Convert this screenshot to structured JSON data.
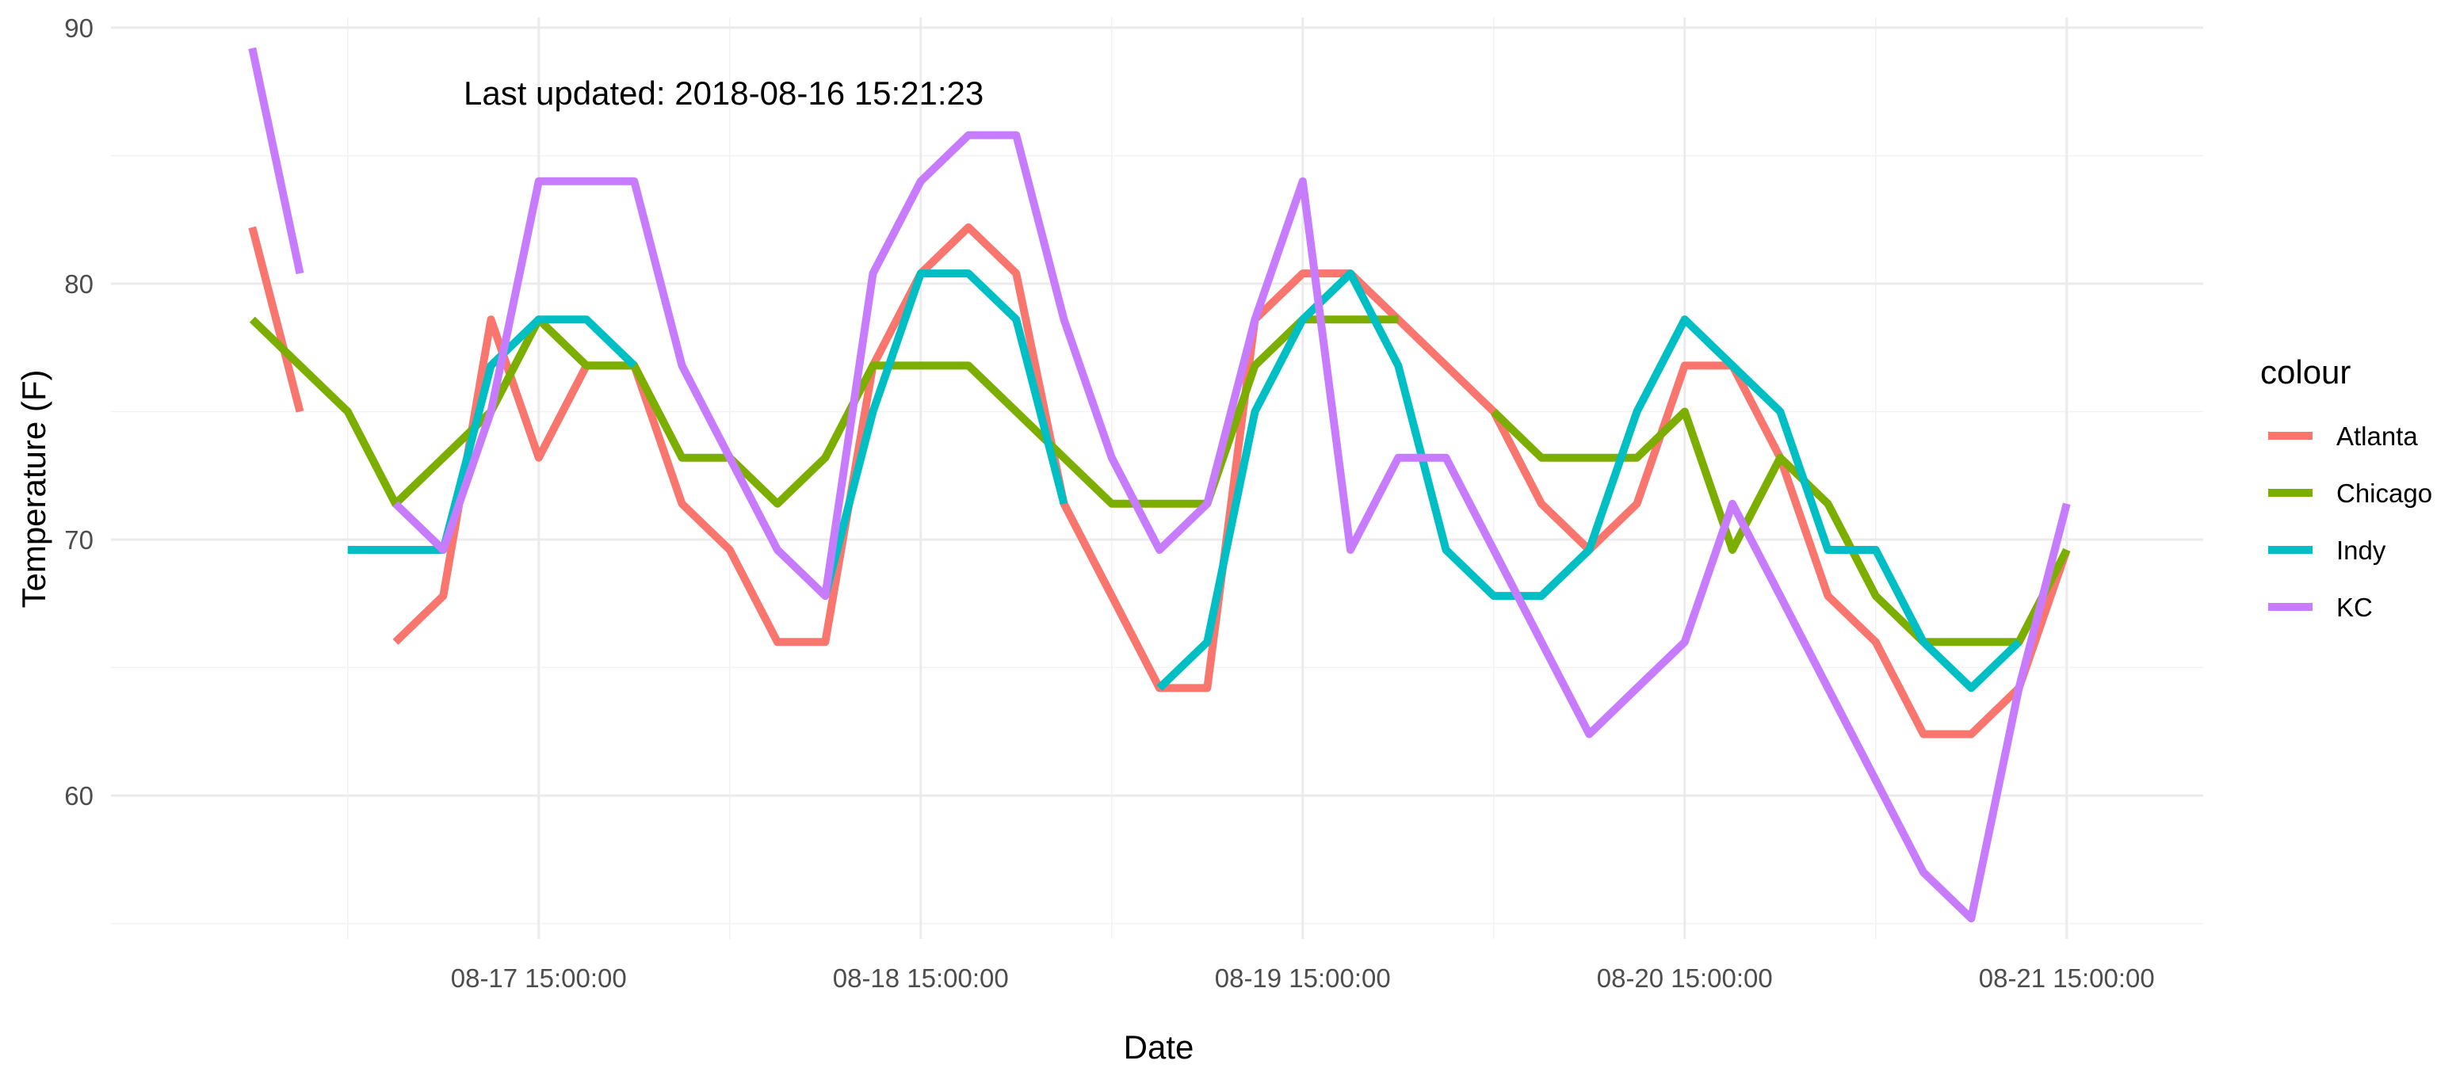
{
  "chart_data": {
    "type": "line",
    "xlabel": "Date",
    "ylabel": "Temperature (F)",
    "annotation": "Last updated: 2018-08-16 15:21:23",
    "legend": {
      "title": "colour",
      "placement": "right"
    },
    "grid": true,
    "ylim": [
      54.4,
      90.4
    ],
    "y_ticks": [
      60,
      70,
      80,
      90
    ],
    "x_unit": "date-time (Aug 2018, 3-hour steps)",
    "x_range": [
      "2018-08-16 18:00",
      "2018-08-21 18:00"
    ],
    "x_ticks": [
      {
        "x": "2018-08-17 15:00",
        "label": "08-17 15:00:00"
      },
      {
        "x": "2018-08-18 15:00",
        "label": "08-18 15:00:00"
      },
      {
        "x": "2018-08-19 15:00",
        "label": "08-19 15:00:00"
      },
      {
        "x": "2018-08-20 15:00",
        "label": "08-20 15:00:00"
      },
      {
        "x": "2018-08-21 15:00",
        "label": "08-21 15:00:00"
      }
    ],
    "x_minor": [
      "2018-08-17 03:00",
      "2018-08-18 03:00",
      "2018-08-19 03:00",
      "2018-08-20 03:00",
      "2018-08-21 03:00"
    ],
    "series": [
      {
        "name": "Atlanta",
        "color": "#F8766D",
        "segments": [
          [
            [
              "2018-08-16 21:00",
              82.2
            ],
            [
              "2018-08-17 00:00",
              75.0
            ]
          ],
          [
            [
              "2018-08-17 06:00",
              66.0
            ],
            [
              "2018-08-17 09:00",
              67.8
            ],
            [
              "2018-08-17 12:00",
              78.6
            ],
            [
              "2018-08-17 15:00",
              73.2
            ],
            [
              "2018-08-17 18:00",
              76.8
            ],
            [
              "2018-08-17 21:00",
              76.8
            ],
            [
              "2018-08-18 00:00",
              71.4
            ],
            [
              "2018-08-18 03:00",
              69.6
            ],
            [
              "2018-08-18 06:00",
              66.0
            ],
            [
              "2018-08-18 09:00",
              66.0
            ],
            [
              "2018-08-18 12:00",
              76.8
            ],
            [
              "2018-08-18 15:00",
              80.4
            ],
            [
              "2018-08-18 18:00",
              82.2
            ],
            [
              "2018-08-18 21:00",
              80.4
            ],
            [
              "2018-08-19 00:00",
              71.4
            ],
            [
              "2018-08-19 03:00",
              67.8
            ],
            [
              "2018-08-19 06:00",
              64.2
            ],
            [
              "2018-08-19 09:00",
              64.2
            ],
            [
              "2018-08-19 12:00",
              78.6
            ],
            [
              "2018-08-19 15:00",
              80.4
            ],
            [
              "2018-08-19 18:00",
              80.4
            ],
            [
              "2018-08-19 21:00",
              78.6
            ],
            [
              "2018-08-20 00:00",
              76.8
            ],
            [
              "2018-08-20 03:00",
              75.0
            ],
            [
              "2018-08-20 06:00",
              71.4
            ],
            [
              "2018-08-20 09:00",
              69.6
            ],
            [
              "2018-08-20 12:00",
              71.4
            ],
            [
              "2018-08-20 15:00",
              76.8
            ],
            [
              "2018-08-20 18:00",
              76.8
            ],
            [
              "2018-08-20 21:00",
              73.2
            ],
            [
              "2018-08-21 00:00",
              67.8
            ],
            [
              "2018-08-21 03:00",
              66.0
            ],
            [
              "2018-08-21 06:00",
              62.4
            ],
            [
              "2018-08-21 09:00",
              62.4
            ],
            [
              "2018-08-21 12:00",
              64.2
            ],
            [
              "2018-08-21 15:00",
              69.6
            ]
          ]
        ]
      },
      {
        "name": "Chicago",
        "color": "#7CAE00",
        "segments": [
          [
            [
              "2018-08-16 21:00",
              78.6
            ],
            [
              "2018-08-17 00:00",
              76.8
            ],
            [
              "2018-08-17 03:00",
              75.0
            ],
            [
              "2018-08-17 06:00",
              71.4
            ],
            [
              "2018-08-17 09:00",
              73.2
            ],
            [
              "2018-08-17 12:00",
              75.0
            ],
            [
              "2018-08-17 15:00",
              78.6
            ],
            [
              "2018-08-17 18:00",
              76.8
            ],
            [
              "2018-08-17 21:00",
              76.8
            ],
            [
              "2018-08-18 00:00",
              73.2
            ],
            [
              "2018-08-18 03:00",
              73.2
            ],
            [
              "2018-08-18 06:00",
              71.4
            ],
            [
              "2018-08-18 09:00",
              73.2
            ],
            [
              "2018-08-18 12:00",
              76.8
            ],
            [
              "2018-08-18 15:00",
              76.8
            ],
            [
              "2018-08-18 18:00",
              76.8
            ],
            [
              "2018-08-18 21:00",
              75.0
            ],
            [
              "2018-08-19 00:00",
              73.2
            ],
            [
              "2018-08-19 03:00",
              71.4
            ],
            [
              "2018-08-19 06:00",
              71.4
            ],
            [
              "2018-08-19 09:00",
              71.4
            ],
            [
              "2018-08-19 12:00",
              76.8
            ],
            [
              "2018-08-19 15:00",
              78.6
            ],
            [
              "2018-08-19 18:00",
              78.6
            ],
            [
              "2018-08-19 21:00",
              78.6
            ]
          ],
          [
            [
              "2018-08-20 03:00",
              75.0
            ],
            [
              "2018-08-20 06:00",
              73.2
            ],
            [
              "2018-08-20 09:00",
              73.2
            ],
            [
              "2018-08-20 12:00",
              73.2
            ],
            [
              "2018-08-20 15:00",
              75.0
            ],
            [
              "2018-08-20 18:00",
              69.6
            ],
            [
              "2018-08-20 21:00",
              73.2
            ],
            [
              "2018-08-21 00:00",
              71.4
            ],
            [
              "2018-08-21 03:00",
              67.8
            ],
            [
              "2018-08-21 06:00",
              66.0
            ],
            [
              "2018-08-21 09:00",
              66.0
            ],
            [
              "2018-08-21 12:00",
              66.0
            ],
            [
              "2018-08-21 15:00",
              69.6
            ]
          ]
        ]
      },
      {
        "name": "Indy",
        "color": "#00BFC4",
        "segments": [
          [
            [
              "2018-08-17 03:00",
              69.6
            ],
            [
              "2018-08-17 06:00",
              69.6
            ],
            [
              "2018-08-17 09:00",
              69.6
            ],
            [
              "2018-08-17 12:00",
              76.8
            ],
            [
              "2018-08-17 15:00",
              78.6
            ],
            [
              "2018-08-17 18:00",
              78.6
            ],
            [
              "2018-08-17 21:00",
              76.8
            ]
          ],
          [
            [
              "2018-08-18 09:00",
              67.8
            ],
            [
              "2018-08-18 12:00",
              75.0
            ],
            [
              "2018-08-18 15:00",
              80.4
            ],
            [
              "2018-08-18 18:00",
              80.4
            ],
            [
              "2018-08-18 21:00",
              78.6
            ],
            [
              "2018-08-19 00:00",
              71.4
            ]
          ],
          [
            [
              "2018-08-19 06:00",
              64.2
            ],
            [
              "2018-08-19 09:00",
              66.0
            ],
            [
              "2018-08-19 12:00",
              75.0
            ],
            [
              "2018-08-19 15:00",
              78.6
            ],
            [
              "2018-08-19 18:00",
              80.4
            ],
            [
              "2018-08-19 21:00",
              76.8
            ],
            [
              "2018-08-20 00:00",
              69.6
            ],
            [
              "2018-08-20 03:00",
              67.8
            ],
            [
              "2018-08-20 06:00",
              67.8
            ],
            [
              "2018-08-20 09:00",
              69.6
            ],
            [
              "2018-08-20 12:00",
              75.0
            ],
            [
              "2018-08-20 15:00",
              78.6
            ],
            [
              "2018-08-20 18:00",
              76.8
            ],
            [
              "2018-08-20 21:00",
              75.0
            ],
            [
              "2018-08-21 00:00",
              69.6
            ],
            [
              "2018-08-21 03:00",
              69.6
            ],
            [
              "2018-08-21 06:00",
              66.0
            ],
            [
              "2018-08-21 09:00",
              64.2
            ],
            [
              "2018-08-21 12:00",
              66.0
            ]
          ]
        ]
      },
      {
        "name": "KC",
        "color": "#C77CFF",
        "segments": [
          [
            [
              "2018-08-16 21:00",
              89.2
            ],
            [
              "2018-08-17 00:00",
              80.4
            ]
          ],
          [
            [
              "2018-08-17 06:00",
              71.4
            ],
            [
              "2018-08-17 09:00",
              69.6
            ],
            [
              "2018-08-17 12:00",
              75.0
            ],
            [
              "2018-08-17 15:00",
              84.0
            ],
            [
              "2018-08-17 18:00",
              84.0
            ],
            [
              "2018-08-17 21:00",
              84.0
            ],
            [
              "2018-08-18 00:00",
              76.8
            ],
            [
              "2018-08-18 03:00",
              73.2
            ],
            [
              "2018-08-18 06:00",
              69.6
            ],
            [
              "2018-08-18 09:00",
              67.8
            ],
            [
              "2018-08-18 12:00",
              80.4
            ],
            [
              "2018-08-18 15:00",
              84.0
            ],
            [
              "2018-08-18 18:00",
              85.8
            ],
            [
              "2018-08-18 21:00",
              85.8
            ],
            [
              "2018-08-19 00:00",
              78.6
            ],
            [
              "2018-08-19 03:00",
              73.2
            ],
            [
              "2018-08-19 06:00",
              69.6
            ],
            [
              "2018-08-19 09:00",
              71.4
            ],
            [
              "2018-08-19 12:00",
              78.6
            ],
            [
              "2018-08-19 15:00",
              84.0
            ],
            [
              "2018-08-19 18:00",
              69.6
            ],
            [
              "2018-08-19 21:00",
              73.2
            ],
            [
              "2018-08-20 00:00",
              73.2
            ],
            [
              "2018-08-20 03:00",
              69.6
            ],
            [
              "2018-08-20 06:00",
              66.0
            ],
            [
              "2018-08-20 09:00",
              62.4
            ],
            [
              "2018-08-20 12:00",
              64.2
            ],
            [
              "2018-08-20 15:00",
              66.0
            ],
            [
              "2018-08-20 18:00",
              71.4
            ],
            [
              "2018-08-20 21:00",
              67.8
            ],
            [
              "2018-08-21 00:00",
              64.2
            ],
            [
              "2018-08-21 03:00",
              60.6
            ],
            [
              "2018-08-21 06:00",
              57.0
            ],
            [
              "2018-08-21 09:00",
              55.2
            ],
            [
              "2018-08-21 12:00",
              64.2
            ],
            [
              "2018-08-21 15:00",
              71.4
            ]
          ]
        ]
      }
    ]
  }
}
